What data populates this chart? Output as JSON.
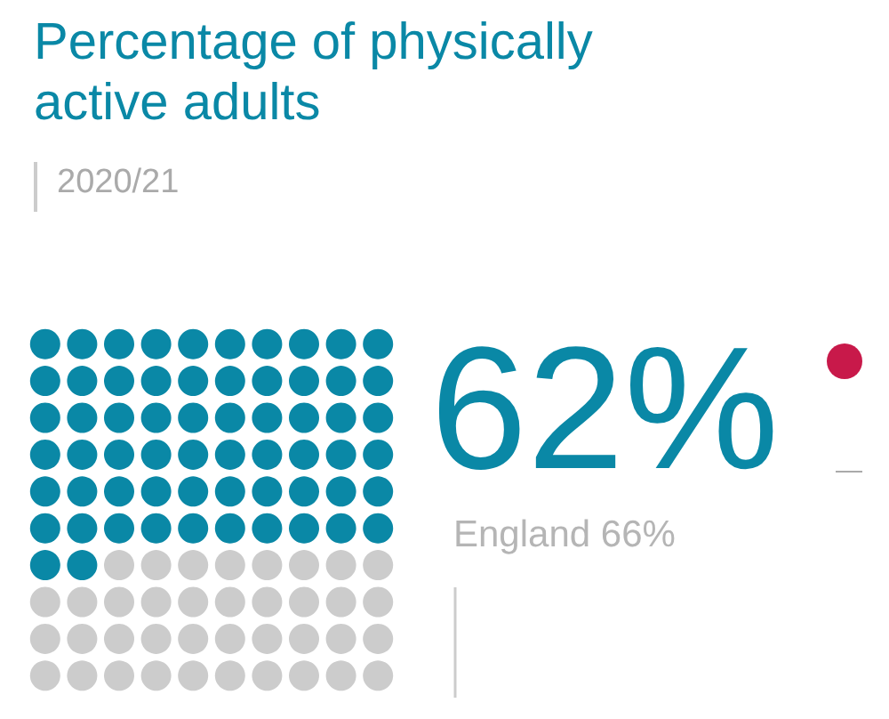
{
  "chart_data": {
    "type": "other",
    "title": "Percentage of physically\nactive adults",
    "subtitle": "2020/21",
    "values": [
      62
    ],
    "value_labels": [
      "62%"
    ],
    "color": "#0a88a6",
    "annotations": [
      "England 66%"
    ]
  }
}
